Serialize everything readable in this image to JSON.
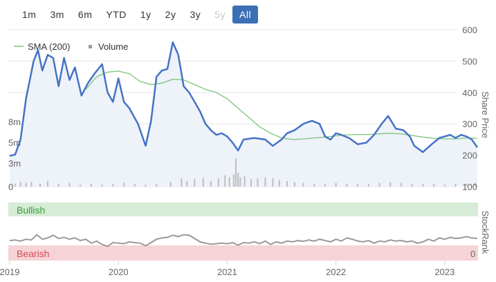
{
  "range_selector": {
    "buttons": [
      {
        "label": "1m",
        "state": "normal"
      },
      {
        "label": "3m",
        "state": "normal"
      },
      {
        "label": "6m",
        "state": "normal"
      },
      {
        "label": "YTD",
        "state": "normal"
      },
      {
        "label": "1y",
        "state": "normal"
      },
      {
        "label": "2y",
        "state": "normal"
      },
      {
        "label": "3y",
        "state": "normal"
      },
      {
        "label": "5y",
        "state": "disabled"
      },
      {
        "label": "All",
        "state": "active"
      }
    ]
  },
  "colors": {
    "price_line": "#4472c4",
    "price_fill": "#eef2f9",
    "sma_line": "#7cc47c",
    "volume_bar": "#bdbdbd",
    "stockrank_line": "#999999",
    "bullish_band": "#d6ecd6",
    "bullish_text": "#3a9a3a",
    "bearish_band": "#f6d3d6",
    "bearish_text": "#d84a55",
    "active_button": "#3b6fb6"
  },
  "chart_data": {
    "type": "line",
    "legend": {
      "placement": "top-left",
      "entries": [
        "SMA (200)",
        "Volume"
      ]
    },
    "price_axis": {
      "title": "Share Price",
      "position": "right",
      "range": [
        100,
        600
      ],
      "ticks": [
        {
          "value": 600,
          "label": "600"
        },
        {
          "value": 500,
          "label": "500"
        },
        {
          "value": 400,
          "label": "400"
        },
        {
          "value": 300,
          "label": "300"
        },
        {
          "value": 200,
          "label": "200"
        },
        {
          "value": 100,
          "label": "100"
        }
      ]
    },
    "volume_axis": {
      "position": "left",
      "ticks": [
        "8m",
        "5m",
        "3m",
        "0"
      ]
    },
    "rank_axis": {
      "title": "StockRank",
      "position": "right",
      "range": [
        0,
        100
      ],
      "ticks": [
        "0"
      ]
    },
    "x_axis": {
      "labels": [
        "2019",
        "2020",
        "2021",
        "2022",
        "2023"
      ],
      "range": [
        2019.0,
        2023.3
      ]
    },
    "grid": true,
    "series": [
      {
        "name": "Share Price",
        "points": [
          [
            2019.0,
            198
          ],
          [
            2019.05,
            202
          ],
          [
            2019.1,
            250
          ],
          [
            2019.15,
            380
          ],
          [
            2019.22,
            500
          ],
          [
            2019.26,
            535
          ],
          [
            2019.3,
            470
          ],
          [
            2019.35,
            520
          ],
          [
            2019.4,
            510
          ],
          [
            2019.45,
            420
          ],
          [
            2019.5,
            510
          ],
          [
            2019.55,
            440
          ],
          [
            2019.6,
            480
          ],
          [
            2019.66,
            390
          ],
          [
            2019.72,
            430
          ],
          [
            2019.78,
            460
          ],
          [
            2019.85,
            490
          ],
          [
            2019.9,
            400
          ],
          [
            2019.95,
            370
          ],
          [
            2020.0,
            445
          ],
          [
            2020.05,
            370
          ],
          [
            2020.1,
            350
          ],
          [
            2020.18,
            300
          ],
          [
            2020.25,
            230
          ],
          [
            2020.3,
            310
          ],
          [
            2020.35,
            450
          ],
          [
            2020.4,
            470
          ],
          [
            2020.45,
            475
          ],
          [
            2020.5,
            560
          ],
          [
            2020.55,
            520
          ],
          [
            2020.6,
            420
          ],
          [
            2020.65,
            400
          ],
          [
            2020.7,
            370
          ],
          [
            2020.75,
            340
          ],
          [
            2020.8,
            300
          ],
          [
            2020.85,
            280
          ],
          [
            2020.9,
            265
          ],
          [
            2020.95,
            270
          ],
          [
            2021.0,
            260
          ],
          [
            2021.05,
            240
          ],
          [
            2021.1,
            215
          ],
          [
            2021.15,
            250
          ],
          [
            2021.25,
            255
          ],
          [
            2021.35,
            250
          ],
          [
            2021.42,
            230
          ],
          [
            2021.5,
            250
          ],
          [
            2021.55,
            270
          ],
          [
            2021.62,
            280
          ],
          [
            2021.7,
            300
          ],
          [
            2021.78,
            310
          ],
          [
            2021.85,
            300
          ],
          [
            2021.9,
            260
          ],
          [
            2021.95,
            250
          ],
          [
            2022.0,
            270
          ],
          [
            2022.05,
            265
          ],
          [
            2022.12,
            255
          ],
          [
            2022.2,
            235
          ],
          [
            2022.28,
            240
          ],
          [
            2022.35,
            265
          ],
          [
            2022.42,
            300
          ],
          [
            2022.48,
            325
          ],
          [
            2022.55,
            285
          ],
          [
            2022.62,
            280
          ],
          [
            2022.68,
            260
          ],
          [
            2022.72,
            230
          ],
          [
            2022.8,
            210
          ],
          [
            2022.88,
            235
          ],
          [
            2022.95,
            255
          ],
          [
            2023.0,
            260
          ],
          [
            2023.05,
            265
          ],
          [
            2023.1,
            255
          ],
          [
            2023.15,
            265
          ],
          [
            2023.2,
            260
          ],
          [
            2023.25,
            250
          ],
          [
            2023.3,
            225
          ]
        ]
      },
      {
        "name": "SMA (200)",
        "points": [
          [
            2019.7,
            410
          ],
          [
            2019.8,
            450
          ],
          [
            2019.9,
            465
          ],
          [
            2020.0,
            468
          ],
          [
            2020.1,
            460
          ],
          [
            2020.2,
            435
          ],
          [
            2020.3,
            425
          ],
          [
            2020.4,
            430
          ],
          [
            2020.5,
            442
          ],
          [
            2020.6,
            440
          ],
          [
            2020.7,
            425
          ],
          [
            2020.8,
            410
          ],
          [
            2020.9,
            400
          ],
          [
            2021.0,
            380
          ],
          [
            2021.1,
            350
          ],
          [
            2021.2,
            320
          ],
          [
            2021.3,
            290
          ],
          [
            2021.4,
            270
          ],
          [
            2021.5,
            255
          ],
          [
            2021.6,
            250
          ],
          [
            2021.7,
            252
          ],
          [
            2021.8,
            255
          ],
          [
            2021.9,
            258
          ],
          [
            2022.0,
            262
          ],
          [
            2022.1,
            265
          ],
          [
            2022.2,
            266
          ],
          [
            2022.3,
            266
          ],
          [
            2022.4,
            268
          ],
          [
            2022.5,
            270
          ],
          [
            2022.6,
            268
          ],
          [
            2022.7,
            263
          ],
          [
            2022.8,
            258
          ],
          [
            2022.9,
            254
          ],
          [
            2023.0,
            252
          ],
          [
            2023.1,
            252
          ],
          [
            2023.2,
            255
          ],
          [
            2023.3,
            254
          ]
        ]
      },
      {
        "name": "Volume",
        "unit": "shares",
        "points": [
          [
            2019.0,
            0.1
          ],
          [
            2019.05,
            0.3
          ],
          [
            2019.1,
            0.5
          ],
          [
            2019.15,
            0.4
          ],
          [
            2019.2,
            0.5
          ],
          [
            2019.28,
            0.3
          ],
          [
            2019.35,
            0.6
          ],
          [
            2019.45,
            0.3
          ],
          [
            2019.55,
            0.4
          ],
          [
            2019.65,
            0.2
          ],
          [
            2019.75,
            0.3
          ],
          [
            2019.85,
            0.2
          ],
          [
            2019.95,
            0.3
          ],
          [
            2020.05,
            0.4
          ],
          [
            2020.15,
            0.3
          ],
          [
            2020.25,
            0.2
          ],
          [
            2020.35,
            0.3
          ],
          [
            2020.48,
            0.5
          ],
          [
            2020.58,
            0.9
          ],
          [
            2020.63,
            0.6
          ],
          [
            2020.7,
            0.8
          ],
          [
            2020.78,
            0.9
          ],
          [
            2020.85,
            0.6
          ],
          [
            2020.92,
            0.9
          ],
          [
            2020.98,
            1.2
          ],
          [
            2021.02,
            1.0
          ],
          [
            2021.06,
            1.3
          ],
          [
            2021.08,
            3.0
          ],
          [
            2021.1,
            1.5
          ],
          [
            2021.12,
            1.0
          ],
          [
            2021.16,
            1.1
          ],
          [
            2021.22,
            0.8
          ],
          [
            2021.28,
            0.9
          ],
          [
            2021.35,
            1.0
          ],
          [
            2021.42,
            0.9
          ],
          [
            2021.48,
            0.7
          ],
          [
            2021.55,
            0.6
          ],
          [
            2021.62,
            0.5
          ],
          [
            2021.7,
            0.4
          ],
          [
            2021.8,
            0.3
          ],
          [
            2021.9,
            0.3
          ],
          [
            2022.0,
            0.4
          ],
          [
            2022.1,
            0.3
          ],
          [
            2022.2,
            0.3
          ],
          [
            2022.3,
            0.3
          ],
          [
            2022.4,
            0.4
          ],
          [
            2022.5,
            0.5
          ],
          [
            2022.6,
            0.4
          ],
          [
            2022.7,
            0.3
          ],
          [
            2022.8,
            0.3
          ],
          [
            2022.9,
            0.3
          ],
          [
            2023.0,
            0.2
          ],
          [
            2023.1,
            0.3
          ],
          [
            2023.2,
            0.3
          ],
          [
            2023.28,
            0.4
          ]
        ]
      },
      {
        "name": "StockRank",
        "points": [
          [
            2019.0,
            50
          ],
          [
            2019.05,
            52
          ],
          [
            2019.1,
            48
          ],
          [
            2019.15,
            55
          ],
          [
            2019.2,
            52
          ],
          [
            2019.25,
            72
          ],
          [
            2019.3,
            55
          ],
          [
            2019.35,
            60
          ],
          [
            2019.4,
            70
          ],
          [
            2019.45,
            58
          ],
          [
            2019.5,
            62
          ],
          [
            2019.55,
            55
          ],
          [
            2019.6,
            60
          ],
          [
            2019.65,
            50
          ],
          [
            2019.7,
            55
          ],
          [
            2019.75,
            40
          ],
          [
            2019.8,
            48
          ],
          [
            2019.85,
            35
          ],
          [
            2019.9,
            28
          ],
          [
            2019.95,
            42
          ],
          [
            2020.0,
            40
          ],
          [
            2020.05,
            38
          ],
          [
            2020.1,
            45
          ],
          [
            2020.15,
            42
          ],
          [
            2020.2,
            40
          ],
          [
            2020.25,
            30
          ],
          [
            2020.3,
            42
          ],
          [
            2020.35,
            55
          ],
          [
            2020.4,
            60
          ],
          [
            2020.45,
            62
          ],
          [
            2020.5,
            70
          ],
          [
            2020.55,
            65
          ],
          [
            2020.6,
            72
          ],
          [
            2020.65,
            70
          ],
          [
            2020.7,
            58
          ],
          [
            2020.75,
            45
          ],
          [
            2020.8,
            40
          ],
          [
            2020.85,
            36
          ],
          [
            2020.9,
            38
          ],
          [
            2020.95,
            40
          ],
          [
            2021.0,
            38
          ],
          [
            2021.05,
            42
          ],
          [
            2021.1,
            32
          ],
          [
            2021.15,
            42
          ],
          [
            2021.2,
            40
          ],
          [
            2021.25,
            45
          ],
          [
            2021.3,
            38
          ],
          [
            2021.35,
            48
          ],
          [
            2021.4,
            35
          ],
          [
            2021.45,
            45
          ],
          [
            2021.5,
            40
          ],
          [
            2021.55,
            48
          ],
          [
            2021.6,
            45
          ],
          [
            2021.65,
            50
          ],
          [
            2021.7,
            47
          ],
          [
            2021.75,
            52
          ],
          [
            2021.8,
            48
          ],
          [
            2021.85,
            55
          ],
          [
            2021.9,
            50
          ],
          [
            2021.95,
            45
          ],
          [
            2022.0,
            55
          ],
          [
            2022.05,
            48
          ],
          [
            2022.1,
            60
          ],
          [
            2022.15,
            55
          ],
          [
            2022.2,
            48
          ],
          [
            2022.25,
            45
          ],
          [
            2022.3,
            50
          ],
          [
            2022.35,
            40
          ],
          [
            2022.4,
            48
          ],
          [
            2022.45,
            45
          ],
          [
            2022.5,
            52
          ],
          [
            2022.55,
            48
          ],
          [
            2022.6,
            50
          ],
          [
            2022.65,
            45
          ],
          [
            2022.7,
            48
          ],
          [
            2022.75,
            40
          ],
          [
            2022.8,
            45
          ],
          [
            2022.85,
            55
          ],
          [
            2022.9,
            48
          ],
          [
            2022.95,
            60
          ],
          [
            2023.0,
            55
          ],
          [
            2023.05,
            62
          ],
          [
            2023.1,
            58
          ],
          [
            2023.15,
            60
          ],
          [
            2023.2,
            65
          ],
          [
            2023.25,
            60
          ],
          [
            2023.3,
            58
          ]
        ]
      }
    ],
    "bands": {
      "bullish_label": "Bullish",
      "bearish_label": "Bearish"
    }
  }
}
